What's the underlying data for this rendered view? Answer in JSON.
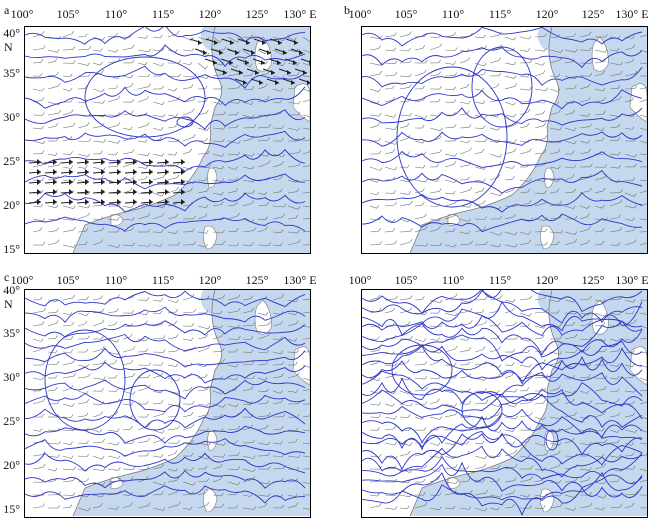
{
  "panels": [
    {
      "letter": "a"
    },
    {
      "letter": "b"
    },
    {
      "letter": "c"
    },
    {
      "letter": ""
    }
  ],
  "lon_ticks": [
    "100°",
    "105°",
    "110°",
    "115°",
    "120°",
    "125°",
    "130° E"
  ],
  "lat_ticks": [
    "40°",
    "35°",
    "30°",
    "25°",
    "20°",
    "15°"
  ],
  "north_label": "N",
  "colors": {
    "ocean": "#c5d8ee",
    "contour": "#2a36c8",
    "coast": "#7a7a7a",
    "barb": "#707070",
    "frame": "#000000"
  }
}
